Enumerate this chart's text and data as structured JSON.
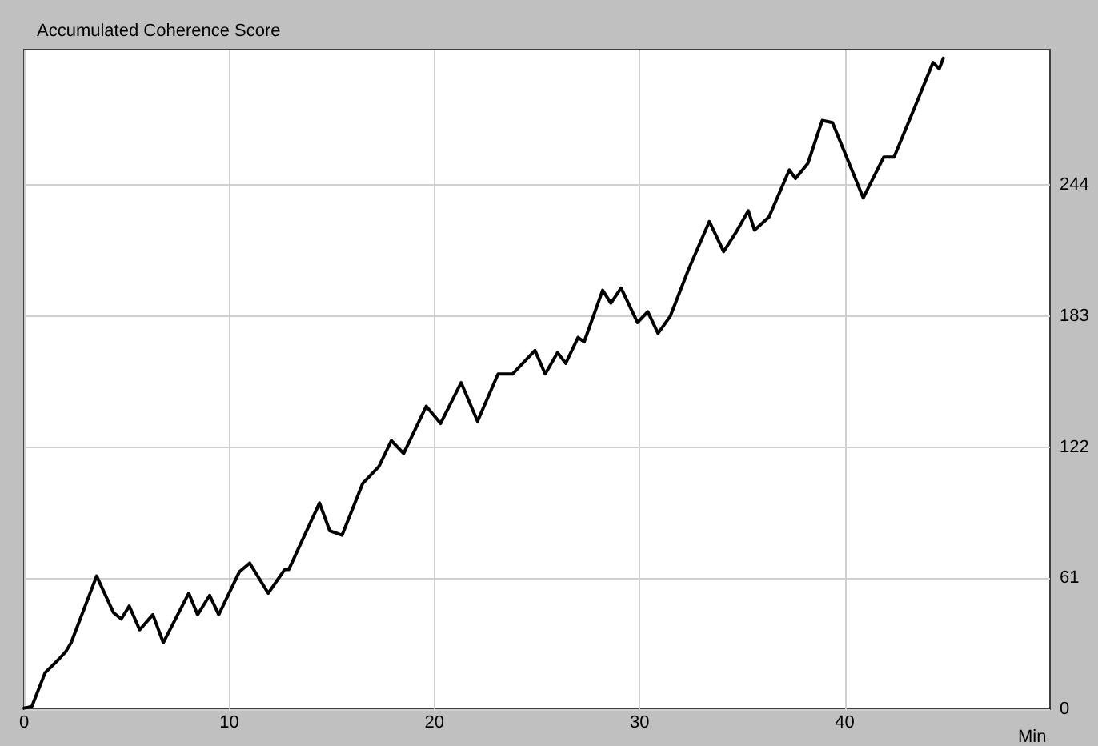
{
  "chart_data": {
    "type": "line",
    "title": "Accumulated Coherence Score",
    "xlabel": "Min",
    "x": [
      0,
      0.38,
      1.03,
      1.67,
      2.05,
      2.3,
      3.54,
      4.36,
      4.74,
      5.13,
      5.64,
      6.28,
      6.79,
      8.03,
      8.46,
      9.05,
      9.49,
      10.5,
      11,
      11.9,
      12.7,
      12.9,
      14.4,
      14.9,
      15.5,
      16.5,
      17.3,
      17.9,
      18.5,
      19.6,
      20.3,
      21.3,
      22.1,
      23.1,
      23.8,
      24.9,
      25.4,
      26.0,
      26.4,
      27.0,
      27.3,
      28.2,
      28.6,
      29.1,
      29.9,
      30.4,
      30.9,
      31.5,
      32.4,
      33.4,
      34.1,
      34.7,
      35.3,
      35.6,
      36.3,
      37.3,
      37.6,
      38.2,
      38.9,
      39.4,
      40.9,
      41.9,
      42.4,
      43.4,
      44.3,
      44.6,
      44.8
    ],
    "series": [
      {
        "color": "#000000",
        "values": [
          0.5,
          1.2,
          17,
          23,
          27,
          31,
          62,
          45,
          42,
          48,
          37,
          44,
          31,
          54,
          44,
          53,
          44,
          64,
          68,
          54,
          65,
          65,
          96,
          83,
          81,
          105,
          113,
          125,
          119,
          141,
          133,
          152,
          134,
          156,
          156,
          167,
          156,
          166,
          161,
          173,
          171,
          195,
          189,
          196,
          180,
          185,
          175,
          183,
          205,
          227,
          213,
          222,
          232,
          223,
          229,
          251,
          247,
          254,
          274,
          273,
          238,
          257,
          257,
          280,
          301,
          298,
          303
        ]
      }
    ],
    "xlim": [
      0,
      50
    ],
    "xticks": [
      0,
      10,
      20,
      30,
      40
    ],
    "ylim": [
      0,
      307
    ],
    "yticks": [
      0,
      61,
      122,
      183,
      244
    ],
    "grid": true,
    "marker": "none",
    "line_style": "solid"
  }
}
